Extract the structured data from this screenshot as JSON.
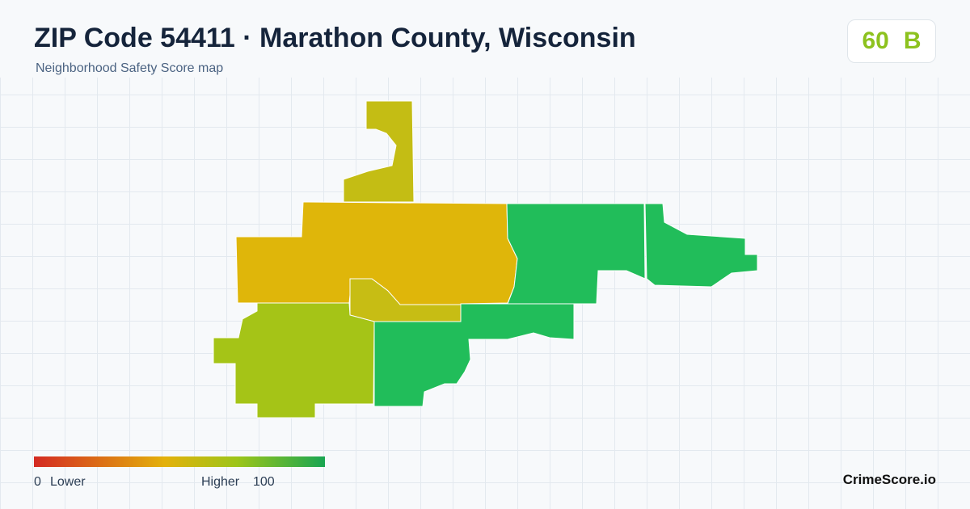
{
  "header": {
    "title": "ZIP Code 54411 · Marathon County, Wisconsin",
    "subtitle": "Neighborhood Safety Score map"
  },
  "score": {
    "value": "60",
    "grade": "B"
  },
  "legend": {
    "min": "0",
    "min_label": "Lower",
    "max_label": "Higher",
    "max": "100"
  },
  "brand": "CrimeScore.io"
}
